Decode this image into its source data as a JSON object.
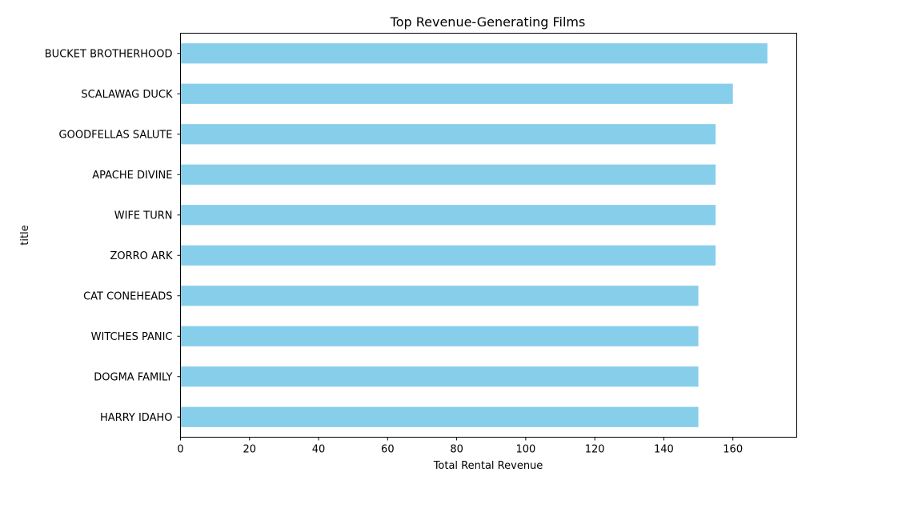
{
  "chart_data": {
    "type": "bar",
    "orientation": "horizontal",
    "title": "Top Revenue-Generating Films",
    "xlabel": "Total Rental Revenue",
    "ylabel": "title",
    "categories": [
      "BUCKET BROTHERHOOD",
      "SCALAWAG DUCK",
      "GOODFELLAS SALUTE",
      "APACHE DIVINE",
      "WIFE TURN",
      "ZORRO ARK",
      "CAT CONEHEADS",
      "WITCHES PANIC",
      "DOGMA FAMILY",
      "HARRY IDAHO"
    ],
    "values": [
      170,
      160,
      155,
      155,
      155,
      155,
      150,
      150,
      150,
      150
    ],
    "xlim": [
      0,
      178.5
    ],
    "xticks": [
      0,
      20,
      40,
      60,
      80,
      100,
      120,
      140,
      160
    ],
    "bar_color": "#87ceeb",
    "grid": false,
    "legend": "none"
  }
}
